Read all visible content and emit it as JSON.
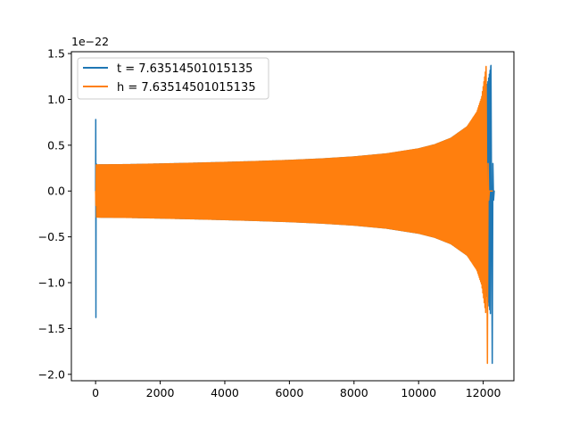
{
  "chart_data": {
    "type": "line",
    "title": "",
    "xlabel": "",
    "ylabel": "",
    "y_scale_label": "1e−22",
    "xlim": [
      -750,
      12950
    ],
    "ylim": [
      -2.07,
      1.52
    ],
    "x_ticks": [
      0,
      2000,
      4000,
      6000,
      8000,
      10000,
      12000
    ],
    "x_tick_labels": [
      "0",
      "2000",
      "4000",
      "6000",
      "8000",
      "10000",
      "12000"
    ],
    "y_ticks": [
      -2.0,
      -1.5,
      -1.0,
      -0.5,
      0.0,
      0.5,
      1.0,
      1.5
    ],
    "y_tick_labels": [
      "−2.0",
      "−1.5",
      "−1.0",
      "−0.5",
      "0.0",
      "0.5",
      "1.0",
      "1.5"
    ],
    "grid": false,
    "legend_position": "top-left",
    "series": [
      {
        "name": "t = 7.63514501015135",
        "color": "#1f77b4",
        "x_start": 0,
        "x_merger": 12240,
        "x_end": 12300,
        "points": [
          [
            0,
            0.0
          ],
          [
            5,
            0.78
          ],
          [
            10,
            -1.38
          ],
          [
            15,
            0.3
          ],
          [
            40,
            0.28
          ],
          [
            80,
            -0.27
          ]
        ],
        "envelope": [
          [
            100,
            0.285
          ],
          [
            1000,
            0.288
          ],
          [
            2000,
            0.295
          ],
          [
            3000,
            0.303
          ],
          [
            4000,
            0.312
          ],
          [
            5000,
            0.322
          ],
          [
            6000,
            0.334
          ],
          [
            7000,
            0.35
          ],
          [
            8000,
            0.372
          ],
          [
            9000,
            0.405
          ],
          [
            10000,
            0.46
          ],
          [
            10500,
            0.505
          ],
          [
            11000,
            0.575
          ],
          [
            11500,
            0.7
          ],
          [
            11800,
            0.84
          ],
          [
            12000,
            1.0
          ],
          [
            12150,
            1.2
          ],
          [
            12240,
            1.37
          ]
        ],
        "merger_min": -1.88
      },
      {
        "name": "h = 7.63514501015135",
        "color": "#ff7f0e",
        "x_start": 0,
        "x_merger": 12090,
        "x_end": 12300,
        "envelope": [
          [
            0,
            0.0
          ],
          [
            20,
            0.285
          ],
          [
            1000,
            0.288
          ],
          [
            2000,
            0.295
          ],
          [
            3000,
            0.303
          ],
          [
            4000,
            0.312
          ],
          [
            5000,
            0.322
          ],
          [
            6000,
            0.334
          ],
          [
            7000,
            0.35
          ],
          [
            8000,
            0.372
          ],
          [
            9000,
            0.405
          ],
          [
            10000,
            0.46
          ],
          [
            10500,
            0.505
          ],
          [
            11000,
            0.575
          ],
          [
            11500,
            0.7
          ],
          [
            11800,
            0.86
          ],
          [
            11950,
            1.02
          ],
          [
            12090,
            1.36
          ]
        ],
        "merger_min": -1.88
      }
    ]
  }
}
